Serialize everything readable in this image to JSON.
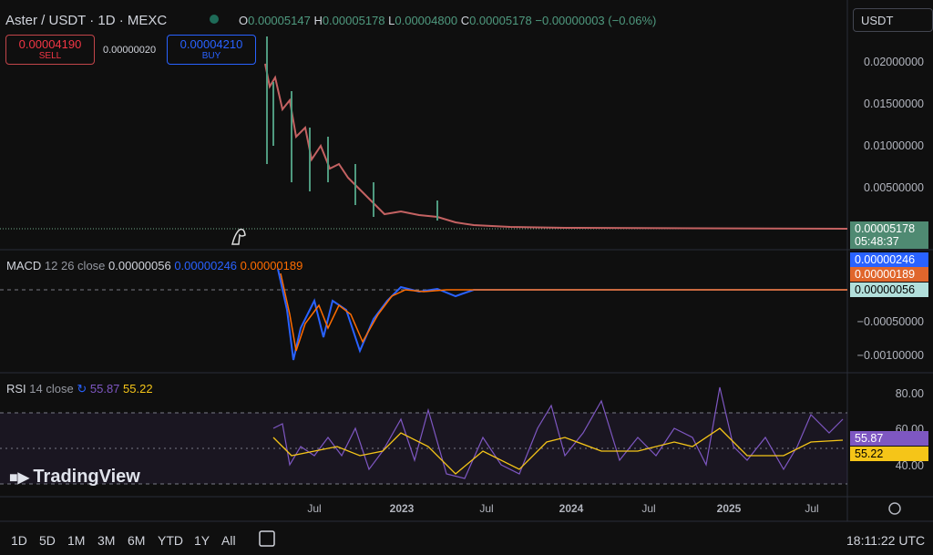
{
  "header": {
    "symbol": "Aster / USDT · 1D · MEXC",
    "open_label": "O",
    "open": "0.00005147",
    "high_label": "H",
    "high": "0.00005178",
    "low_label": "L",
    "low": "0.00004800",
    "close_label": "C",
    "close": "0.00005178",
    "change": "−0.00000003 (−0.06%)"
  },
  "currency": "USDT",
  "trade": {
    "sell_price": "0.00004190",
    "sell_label": "SELL",
    "spread": "0.00000020",
    "buy_price": "0.00004210",
    "buy_label": "BUY"
  },
  "price_axis": [
    "0.02000000",
    "0.01500000",
    "0.01000000",
    "0.00500000"
  ],
  "last_price": {
    "value": "0.00005178",
    "countdown": "05:48:37"
  },
  "macd": {
    "title": "MACD",
    "params": "12 26 close",
    "values": [
      "0.00000056",
      "0.00000246",
      "0.00000189"
    ],
    "axis": [
      "−0.00050000",
      "−0.00100000"
    ]
  },
  "rsi": {
    "title": "RSI",
    "params": "14 close",
    "values": [
      "55.87",
      "55.22"
    ],
    "axis": [
      "80.00",
      "60.00",
      "40.00"
    ]
  },
  "logo": "TradingView",
  "time_axis": [
    "Jul",
    "2023",
    "Jul",
    "2024",
    "Jul",
    "2025",
    "Jul"
  ],
  "ranges": [
    "1D",
    "5D",
    "1M",
    "3M",
    "6M",
    "YTD",
    "1Y",
    "All"
  ],
  "clock": "18:11:22 UTC"
}
